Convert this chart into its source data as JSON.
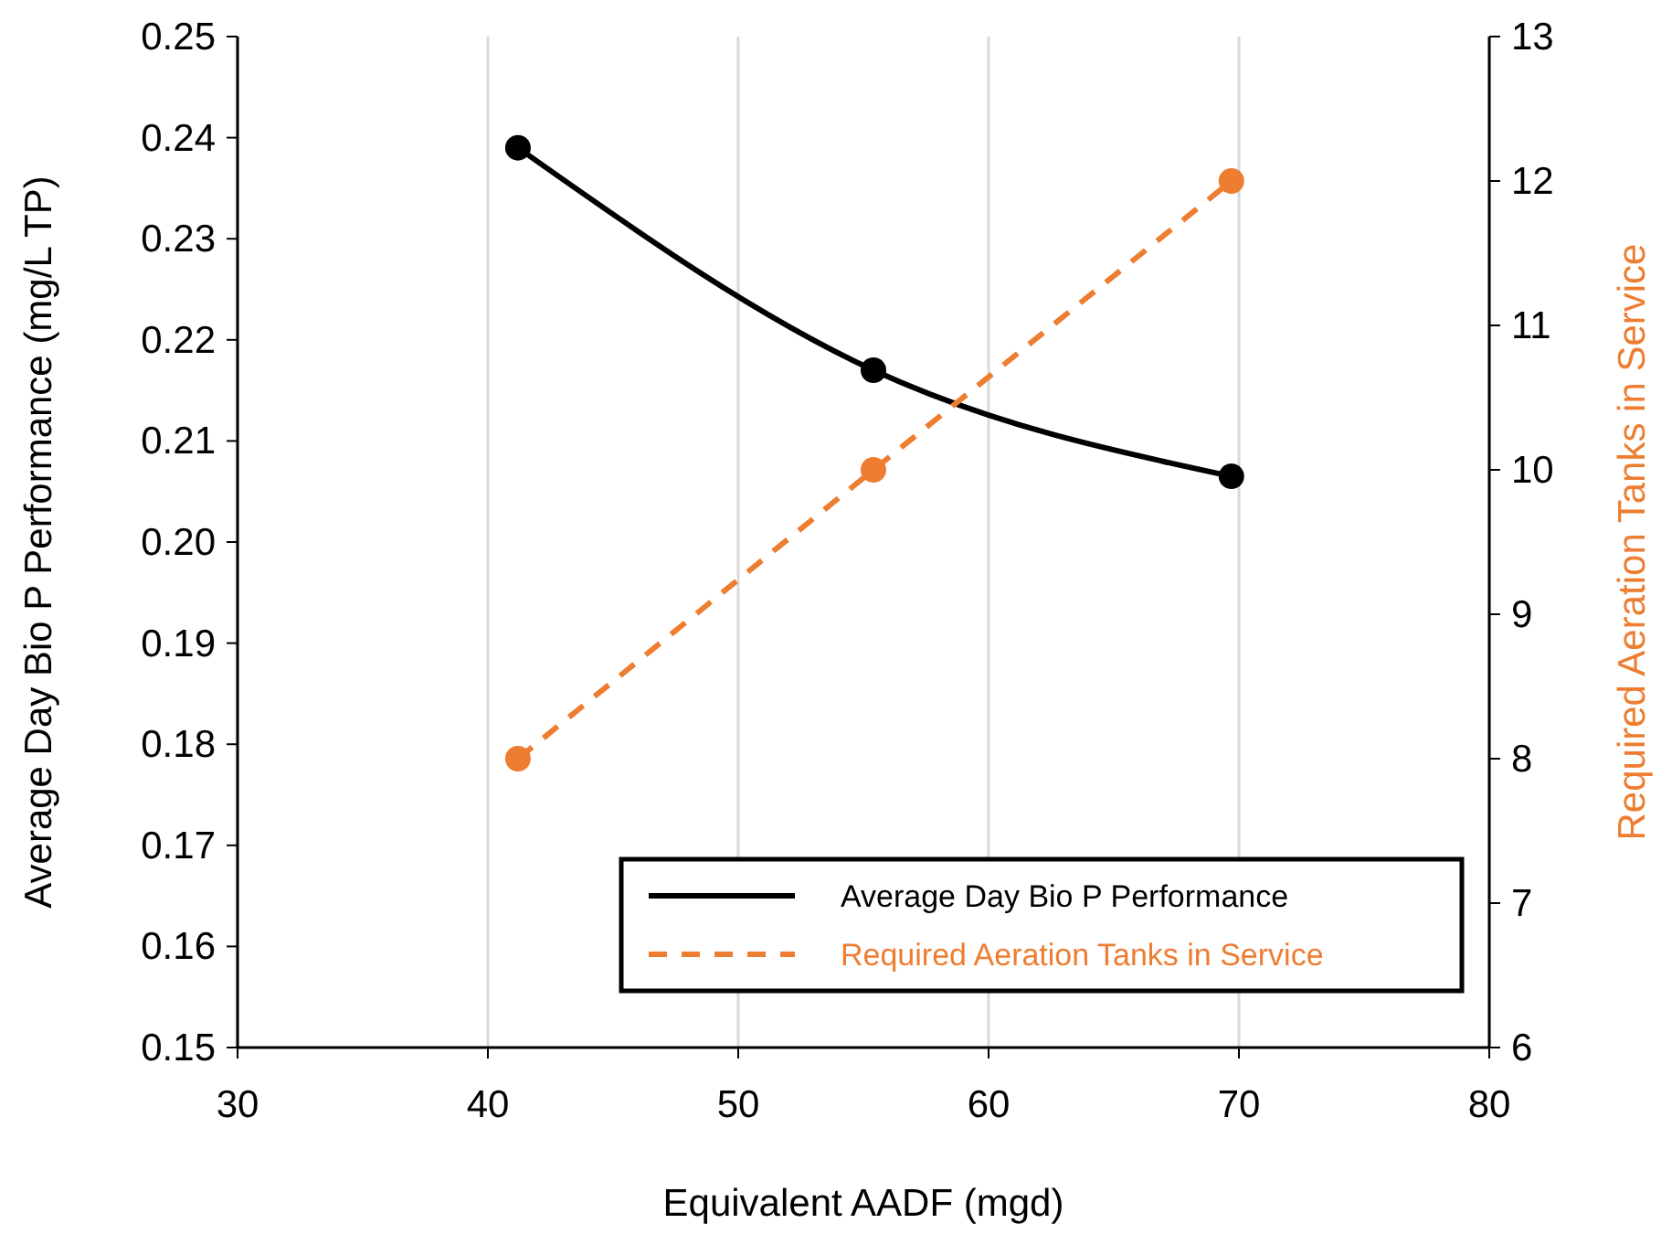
{
  "chart_data": {
    "type": "line",
    "xlabel": "Equivalent AADF (mgd)",
    "ylabel": "Average Day Bio P Performance (mg/L TP)",
    "y2label": "Required Aeration Tanks in Service",
    "xlim": [
      30,
      80
    ],
    "xticks": [
      30,
      40,
      50,
      60,
      70,
      80
    ],
    "ylim": [
      0.15,
      0.25
    ],
    "yticks": [
      {
        "value": 0.15,
        "label": "0.15"
      },
      {
        "value": 0.16,
        "label": "0.16"
      },
      {
        "value": 0.17,
        "label": "0.17"
      },
      {
        "value": 0.18,
        "label": "0.18"
      },
      {
        "value": 0.19,
        "label": "0.19"
      },
      {
        "value": 0.2,
        "label": "0.20"
      },
      {
        "value": 0.21,
        "label": "0.21"
      },
      {
        "value": 0.22,
        "label": "0.22"
      },
      {
        "value": 0.23,
        "label": "0.23"
      },
      {
        "value": 0.24,
        "label": "0.24"
      },
      {
        "value": 0.25,
        "label": "0.25"
      }
    ],
    "y2lim": [
      6,
      13
    ],
    "y2ticks": [
      6,
      7,
      8,
      9,
      10,
      11,
      12,
      13
    ],
    "grid": "x",
    "legend": "bottom right",
    "marker": "circle",
    "series": [
      {
        "name": "Average Day Bio P Performance",
        "color": "#000000",
        "x": [
          41.2,
          55.4,
          69.7
        ],
        "values": [
          0.239,
          0.217,
          0.2065
        ],
        "line_style": "solid"
      },
      {
        "name": "Required Aeration Tanks in Service",
        "color": "#ed7d31",
        "x": [
          41.2,
          55.4,
          69.7
        ],
        "values": [
          8,
          10,
          12
        ],
        "axis": "y2",
        "line_style": "dashed"
      }
    ]
  }
}
